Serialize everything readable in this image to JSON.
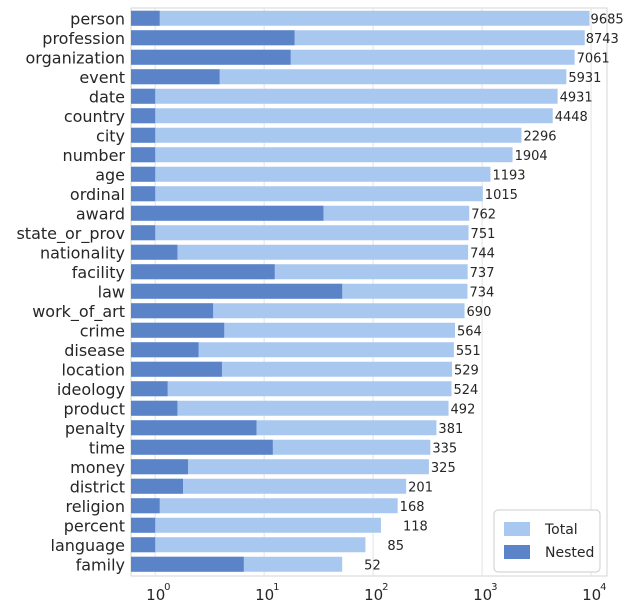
{
  "chart_data": {
    "type": "bar",
    "orientation": "horizontal",
    "xscale": "log",
    "xlim": [
      0.6,
      14000
    ],
    "grid": true,
    "legend_position": "bottom-right",
    "categories": [
      "person",
      "profession",
      "organization",
      "event",
      "date",
      "country",
      "city",
      "number",
      "age",
      "ordinal",
      "award",
      "state_or_prov",
      "nationality",
      "facility",
      "law",
      "work_of_art",
      "crime",
      "disease",
      "location",
      "ideology",
      "product",
      "penalty",
      "time",
      "money",
      "district",
      "religion",
      "percent",
      "language",
      "family"
    ],
    "series": [
      {
        "name": "Total",
        "color": "#a9c8f0",
        "values": [
          9685,
          8743,
          7061,
          5931,
          4931,
          4448,
          2296,
          1904,
          1193,
          1015,
          762,
          751,
          744,
          737,
          734,
          690,
          564,
          551,
          529,
          524,
          492,
          381,
          335,
          325,
          201,
          168,
          118,
          85,
          52
        ],
        "labels": [
          "9685",
          "8743",
          "7061",
          "5931",
          "4931",
          "4448",
          "2296",
          "1904",
          "1193",
          "1015",
          "762",
          "751",
          "744",
          "737",
          "734",
          "690",
          "564",
          "551",
          "529",
          "524",
          "492",
          "381",
          "335",
          "325",
          "201",
          "168",
          "118",
          "85",
          "52"
        ]
      },
      {
        "name": "Nested",
        "color": "#5b84c8",
        "values": [
          1.1,
          19,
          17.5,
          3.9,
          1,
          1,
          1,
          1,
          1,
          1,
          35,
          1,
          1.6,
          12.5,
          52,
          3.4,
          4.3,
          2.5,
          4.1,
          1.3,
          1.6,
          8.5,
          12,
          2,
          1.8,
          1.1,
          1,
          1,
          6.5
        ]
      }
    ],
    "xticks": [
      {
        "value": 1,
        "base": "10",
        "exp": "0"
      },
      {
        "value": 10,
        "base": "10",
        "exp": "1"
      },
      {
        "value": 100,
        "base": "10",
        "exp": "2"
      },
      {
        "value": 1000,
        "base": "10",
        "exp": "3"
      },
      {
        "value": 10000,
        "base": "10",
        "exp": "4"
      }
    ]
  }
}
